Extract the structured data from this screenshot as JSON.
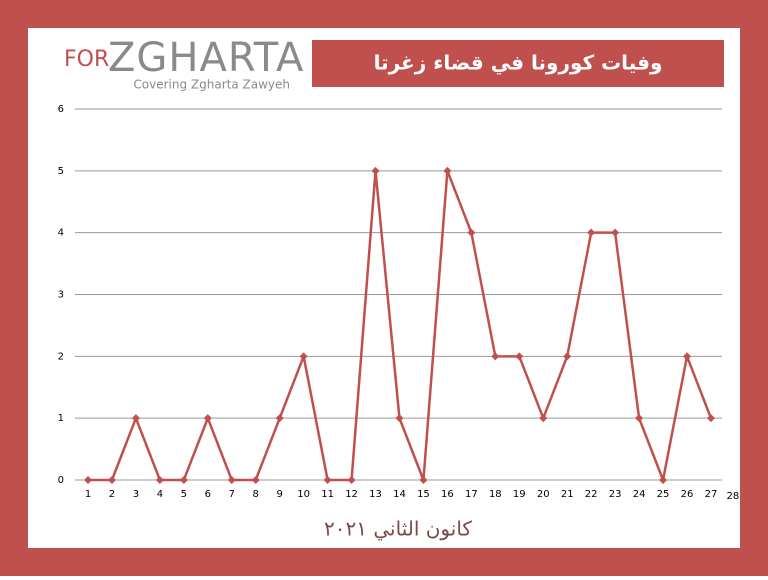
{
  "logo": {
    "prefix": "FOR",
    "name": "ZGHARTA",
    "tagline": "Covering Zgharta Zawyeh"
  },
  "chart_data": {
    "type": "line",
    "title": "وفيات كورونا في قضاء زغرتا",
    "x_label": "كانون الثاني ٢٠٢١",
    "categories": [
      "1",
      "2",
      "3",
      "4",
      "5",
      "6",
      "7",
      "8",
      "9",
      "10",
      "11",
      "12",
      "13",
      "14",
      "15",
      "16",
      "17",
      "18",
      "19",
      "20",
      "21",
      "22",
      "23",
      "24",
      "25",
      "26",
      "27",
      "28"
    ],
    "series": [
      {
        "color": "#c0504d",
        "values": [
          0,
          0,
          1,
          0,
          0,
          1,
          0,
          0,
          1,
          2,
          0,
          0,
          5,
          1,
          0,
          5,
          4,
          2,
          2,
          1,
          2,
          4,
          4,
          1,
          0,
          2,
          1,
          null
        ]
      }
    ],
    "ylim": [
      0,
      6
    ],
    "yticks": [
      0,
      1,
      2,
      3,
      4,
      5,
      6
    ],
    "grid": true
  }
}
